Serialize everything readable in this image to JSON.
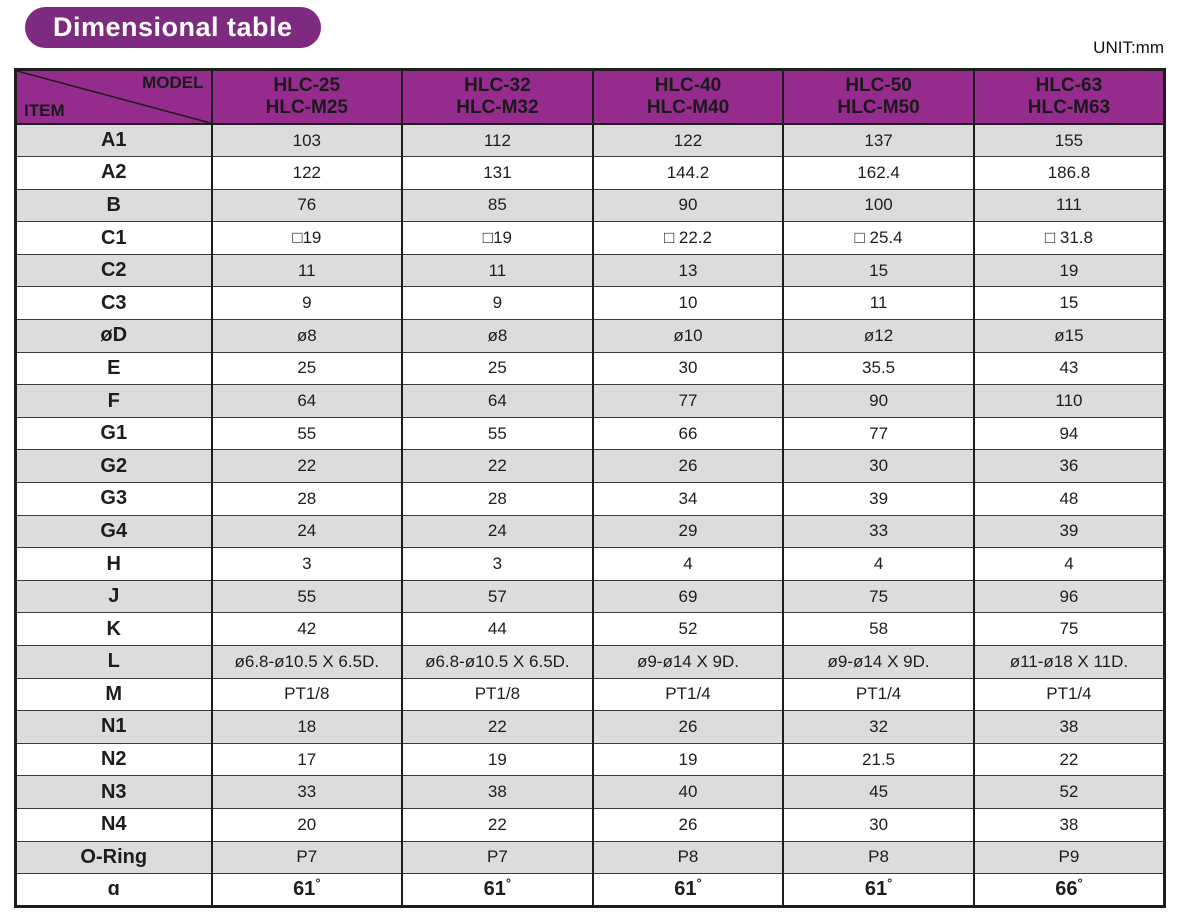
{
  "page": {
    "title_badge": "Dimensional table",
    "unit_label": "UNIT:mm"
  },
  "colors": {
    "badge_bg": "#7d2a80",
    "header_bg": "#962b8e",
    "row_shaded": "#dcdcdd",
    "border": "#1d1d1b"
  },
  "table": {
    "corner": {
      "top_label": "MODEL",
      "bottom_label": "ITEM"
    },
    "columns": [
      {
        "line1": "HLC-25",
        "line2": "HLC-M25"
      },
      {
        "line1": "HLC-32",
        "line2": "HLC-M32"
      },
      {
        "line1": "HLC-40",
        "line2": "HLC-M40"
      },
      {
        "line1": "HLC-50",
        "line2": "HLC-M50"
      },
      {
        "line1": "HLC-63",
        "line2": "HLC-M63"
      }
    ],
    "rows": [
      {
        "item": "A1",
        "values": [
          "103",
          "112",
          "122",
          "137",
          "155"
        ]
      },
      {
        "item": "A2",
        "values": [
          "122",
          "131",
          "144.2",
          "162.4",
          "186.8"
        ]
      },
      {
        "item": "B",
        "values": [
          "76",
          "85",
          "90",
          "100",
          "111"
        ]
      },
      {
        "item": "C1",
        "values": [
          "□19",
          "□19",
          "□ 22.2",
          "□ 25.4",
          "□ 31.8"
        ]
      },
      {
        "item": "C2",
        "values": [
          "11",
          "11",
          "13",
          "15",
          "19"
        ]
      },
      {
        "item": "C3",
        "values": [
          "9",
          "9",
          "10",
          "11",
          "15"
        ]
      },
      {
        "item": "øD",
        "values": [
          "ø8",
          "ø8",
          "ø10",
          "ø12",
          "ø15"
        ]
      },
      {
        "item": "E",
        "values": [
          "25",
          "25",
          "30",
          "35.5",
          "43"
        ]
      },
      {
        "item": "F",
        "values": [
          "64",
          "64",
          "77",
          "90",
          "110"
        ]
      },
      {
        "item": "G1",
        "values": [
          "55",
          "55",
          "66",
          "77",
          "94"
        ]
      },
      {
        "item": "G2",
        "values": [
          "22",
          "22",
          "26",
          "30",
          "36"
        ]
      },
      {
        "item": "G3",
        "values": [
          "28",
          "28",
          "34",
          "39",
          "48"
        ]
      },
      {
        "item": "G4",
        "values": [
          "24",
          "24",
          "29",
          "33",
          "39"
        ]
      },
      {
        "item": "H",
        "values": [
          "3",
          "3",
          "4",
          "4",
          "4"
        ]
      },
      {
        "item": "J",
        "values": [
          "55",
          "57",
          "69",
          "75",
          "96"
        ]
      },
      {
        "item": "K",
        "values": [
          "42",
          "44",
          "52",
          "58",
          "75"
        ]
      },
      {
        "item": "L",
        "values": [
          "ø6.8-ø10.5 X 6.5D.",
          "ø6.8-ø10.5 X 6.5D.",
          "ø9-ø14 X 9D.",
          "ø9-ø14 X 9D.",
          "ø11-ø18 X 11D."
        ]
      },
      {
        "item": "M",
        "values": [
          "PT1/8",
          "PT1/8",
          "PT1/4",
          "PT1/4",
          "PT1/4"
        ]
      },
      {
        "item": "N1",
        "values": [
          "18",
          "22",
          "26",
          "32",
          "38"
        ]
      },
      {
        "item": "N2",
        "values": [
          "17",
          "19",
          "19",
          "21.5",
          "22"
        ]
      },
      {
        "item": "N3",
        "values": [
          "33",
          "38",
          "40",
          "45",
          "52"
        ]
      },
      {
        "item": "N4",
        "values": [
          "20",
          "22",
          "26",
          "30",
          "38"
        ]
      },
      {
        "item": "O-Ring",
        "values": [
          "P7",
          "P7",
          "P8",
          "P8",
          "P9"
        ]
      },
      {
        "item": "ɑ",
        "values": [
          "61°",
          "61°",
          "61°",
          "61°",
          "66°"
        ],
        "emphasis": true
      }
    ]
  }
}
